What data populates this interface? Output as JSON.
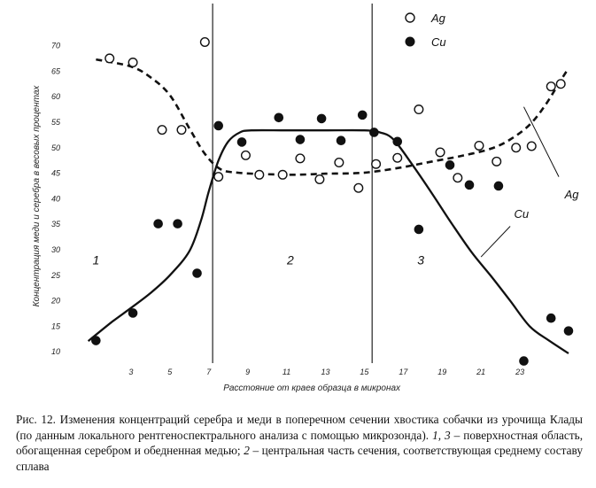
{
  "chart_data": {
    "type": "scatter",
    "xlabel": "Расстояние от краев образца в микронах",
    "ylabel": "Концентрация меди и серебра в весовых процентах",
    "xlim": [
      0,
      25.5
    ],
    "ylim": [
      9,
      72
    ],
    "x_ticks": [
      3,
      5,
      7,
      9,
      11,
      13,
      15,
      17,
      19,
      21,
      23
    ],
    "y_ticks": [
      10,
      15,
      20,
      25,
      30,
      35,
      40,
      45,
      50,
      55,
      60,
      65,
      70
    ],
    "zone_boundaries": [
      7.2,
      15.4
    ],
    "zone_labels": [
      {
        "label": "1",
        "x": 1.2,
        "y": 28
      },
      {
        "label": "2",
        "x": 11.2,
        "y": 28
      },
      {
        "label": "3",
        "x": 17.9,
        "y": 28
      }
    ],
    "legend": [
      {
        "name": "Ag",
        "marker": "open-circle"
      },
      {
        "name": "Cu",
        "marker": "filled-circle"
      }
    ],
    "series": [
      {
        "name": "Ag",
        "marker": "open-circle",
        "points": [
          [
            1.9,
            67.5
          ],
          [
            3.1,
            66.7
          ],
          [
            4.6,
            53.5
          ],
          [
            5.6,
            53.5
          ],
          [
            6.8,
            70.7
          ],
          [
            7.5,
            44.3
          ],
          [
            8.9,
            48.5
          ],
          [
            9.6,
            44.7
          ],
          [
            10.8,
            44.7
          ],
          [
            11.7,
            47.9
          ],
          [
            12.7,
            43.8
          ],
          [
            13.7,
            47.1
          ],
          [
            14.7,
            42.1
          ],
          [
            15.6,
            46.8
          ],
          [
            16.7,
            48.0
          ],
          [
            17.8,
            57.5
          ],
          [
            18.9,
            49.1
          ],
          [
            19.8,
            44.1
          ],
          [
            20.9,
            50.4
          ],
          [
            21.8,
            47.3
          ],
          [
            22.8,
            50.0
          ],
          [
            23.6,
            50.3
          ],
          [
            24.6,
            62.0
          ],
          [
            25.1,
            62.5
          ]
        ]
      },
      {
        "name": "Cu",
        "marker": "filled-circle",
        "points": [
          [
            1.2,
            12.2
          ],
          [
            3.1,
            17.6
          ],
          [
            4.4,
            35.1
          ],
          [
            5.4,
            35.1
          ],
          [
            6.4,
            25.4
          ],
          [
            7.5,
            54.3
          ],
          [
            8.7,
            51.1
          ],
          [
            10.6,
            55.9
          ],
          [
            11.7,
            51.6
          ],
          [
            12.8,
            55.7
          ],
          [
            13.8,
            51.4
          ],
          [
            14.9,
            56.4
          ],
          [
            15.5,
            53.0
          ],
          [
            16.7,
            51.2
          ],
          [
            17.8,
            34.0
          ],
          [
            19.4,
            46.6
          ],
          [
            20.4,
            42.7
          ],
          [
            21.9,
            42.5
          ],
          [
            23.2,
            8.2
          ],
          [
            24.6,
            16.6
          ],
          [
            25.5,
            14.1
          ]
        ]
      }
    ],
    "curves": [
      {
        "name": "Ag",
        "style": "dashed",
        "points": [
          [
            1.2,
            67.3
          ],
          [
            3.0,
            65.9
          ],
          [
            4.0,
            63.8
          ],
          [
            5.0,
            60.3
          ],
          [
            6.0,
            53.8
          ],
          [
            6.8,
            48.8
          ],
          [
            7.6,
            45.8
          ],
          [
            8.5,
            45.1
          ],
          [
            10.0,
            44.8
          ],
          [
            11.5,
            44.7
          ],
          [
            13.0,
            44.9
          ],
          [
            14.5,
            45.0
          ],
          [
            15.5,
            45.3
          ],
          [
            17.0,
            46.2
          ],
          [
            18.5,
            47.3
          ],
          [
            20.0,
            48.4
          ],
          [
            21.5,
            49.8
          ],
          [
            22.5,
            51.6
          ],
          [
            23.5,
            54.5
          ],
          [
            24.3,
            58.3
          ],
          [
            25.0,
            62.6
          ],
          [
            25.5,
            65.6
          ]
        ]
      },
      {
        "name": "Cu",
        "style": "solid",
        "points": [
          [
            0.8,
            12.1
          ],
          [
            2.0,
            15.8
          ],
          [
            3.0,
            18.6
          ],
          [
            4.0,
            21.5
          ],
          [
            5.0,
            25.0
          ],
          [
            6.0,
            29.7
          ],
          [
            6.6,
            35.7
          ],
          [
            7.0,
            41.4
          ],
          [
            7.5,
            47.5
          ],
          [
            8.0,
            51.2
          ],
          [
            8.6,
            53.0
          ],
          [
            9.2,
            53.4
          ],
          [
            11.0,
            53.4
          ],
          [
            13.0,
            53.4
          ],
          [
            15.0,
            53.4
          ],
          [
            15.8,
            53.0
          ],
          [
            16.5,
            51.6
          ],
          [
            17.5,
            46.5
          ],
          [
            18.5,
            40.9
          ],
          [
            19.5,
            35.1
          ],
          [
            20.5,
            29.6
          ],
          [
            21.5,
            24.9
          ],
          [
            22.5,
            20.0
          ],
          [
            23.5,
            15.0
          ],
          [
            24.5,
            12.2
          ],
          [
            25.5,
            9.7
          ]
        ]
      }
    ],
    "curve_labels": [
      {
        "name": "Ag",
        "text": "Ag",
        "x": 25.3,
        "y": 40.8
      },
      {
        "name": "Cu",
        "text": "Cu",
        "x": 22.7,
        "y": 36.9
      }
    ]
  },
  "caption": {
    "part1": "Рис. 12. Изменения концентраций серебра и меди в поперечном сечении хвостика собачки из урочища Клады (по данным локального рентгеноспектрального анализа с помощью микрозонда).",
    "zones_outer": "1, 3",
    "part2": "– поверхностная область, обогащенная серебром и обедненная медью;",
    "zone_center": "2",
    "part3": "– центральная часть сечения, соответствующая среднему составу сплава"
  }
}
